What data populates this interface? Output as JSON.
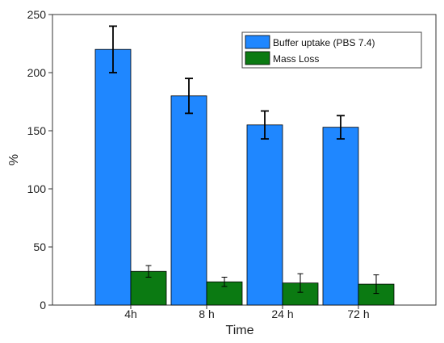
{
  "chart_data": {
    "type": "bar",
    "categories": [
      "4h",
      "8 h",
      "24 h",
      "72  h"
    ],
    "series": [
      {
        "name": "Buffer uptake (PBS 7.4)",
        "color": "#1f87ff",
        "values": [
          220,
          180,
          155,
          153
        ],
        "errors": [
          20,
          15,
          12,
          10
        ]
      },
      {
        "name": "Mass Loss",
        "color": "#0b7a12",
        "values": [
          29,
          20,
          19,
          18
        ],
        "errors": [
          5,
          4,
          8,
          8
        ]
      }
    ],
    "xlabel": "Time",
    "ylabel": "%",
    "ylim": [
      0,
      250
    ],
    "yticks": [
      0,
      50,
      100,
      150,
      200,
      250
    ],
    "grid": false,
    "legend_position": "top-right"
  }
}
